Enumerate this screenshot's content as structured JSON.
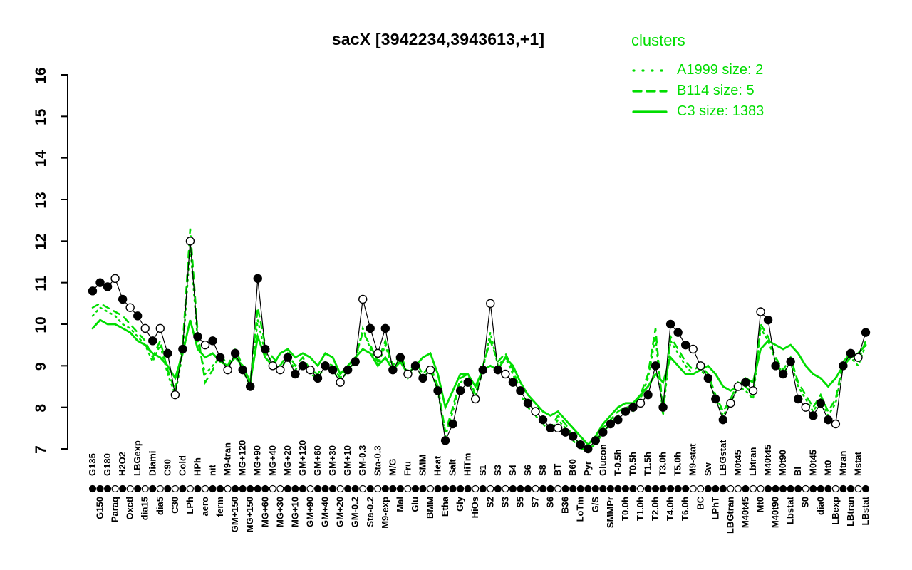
{
  "chart_data": {
    "type": "line",
    "title": "sacX [3942234,3943613,+1]",
    "legend_title": "clusters",
    "legend_position": "top-right",
    "xlabel": "",
    "ylabel": "",
    "ylim": [
      7,
      16
    ],
    "yticks": [
      7,
      8,
      9,
      10,
      11,
      12,
      13,
      14,
      15,
      16
    ],
    "grid": false,
    "series_color": "#00dd00",
    "profile_color": "#000000",
    "categories": [
      "G135",
      "G150",
      "G180",
      "Paraq",
      "H2O2",
      "Oxctl",
      "LBGexp",
      "dia15",
      "Diami",
      "dia5",
      "C90",
      "C30",
      "Cold",
      "LPh",
      "HPh",
      "aero",
      "nit",
      "ferm",
      "M9-tran",
      "GM+150",
      "MG+120",
      "MG+150",
      "MG+90",
      "MG+60",
      "MG+40",
      "MG+30",
      "MG+20",
      "MG+10",
      "GM+120",
      "GM+90",
      "GM+60",
      "GM+40",
      "GM+30",
      "GM+20",
      "GM+10",
      "GM-0.2",
      "GM-0.3",
      "Sta-0.2",
      "Sta-0.3",
      "M9-exp",
      "M/G",
      "Mal",
      "Fru",
      "Glu",
      "SMM",
      "BMM",
      "Heat",
      "Etha",
      "Salt",
      "Gly",
      "HiTm",
      "HiOs",
      "S1",
      "S2",
      "S3",
      "S3",
      "S4",
      "S5",
      "S6",
      "S7",
      "S8",
      "S6",
      "BT",
      "B36",
      "B60",
      "LoTm",
      "Pyr",
      "G/S",
      "Glucon",
      "SMMPr",
      "T-0.5h",
      "T0.0h",
      "T0.5h",
      "T1.0h",
      "T1.5h",
      "T2.0h",
      "T3.0h",
      "T4.0h",
      "T5.0h",
      "T6.0h",
      "M9-stat",
      "BC",
      "Sw",
      "LPhT",
      "LBGstat",
      "LBGtran",
      "M0t45",
      "M40t45",
      "Lbtran",
      "Mt0",
      "M40t45",
      "M40t90",
      "M0t90",
      "Lbstat",
      "BI",
      "S0",
      "M0t45",
      "dia0",
      "Mt0",
      "LBexp",
      "Mtran",
      "LBtran",
      "Mstat",
      "LBstat"
    ],
    "profile": {
      "name": "sacX expression profile",
      "values": [
        10.8,
        11.0,
        10.9,
        11.1,
        10.6,
        10.4,
        10.2,
        9.9,
        9.6,
        9.9,
        9.3,
        8.3,
        9.4,
        12.0,
        9.7,
        9.5,
        9.6,
        9.2,
        8.9,
        9.3,
        8.9,
        8.5,
        11.1,
        9.4,
        9.0,
        8.9,
        9.2,
        8.8,
        9.0,
        8.9,
        8.7,
        9.0,
        8.9,
        8.6,
        8.9,
        9.1,
        10.6,
        9.9,
        9.3,
        9.9,
        8.9,
        9.2,
        8.8,
        9.0,
        8.7,
        8.9,
        8.4,
        7.2,
        7.6,
        8.4,
        8.6,
        8.2,
        8.9,
        10.5,
        8.9,
        8.8,
        8.6,
        8.4,
        8.1,
        7.9,
        7.7,
        7.5,
        7.5,
        7.4,
        7.3,
        7.1,
        7.0,
        7.2,
        7.4,
        7.6,
        7.7,
        7.9,
        8.0,
        8.1,
        8.3,
        9.0,
        8.0,
        10.0,
        9.8,
        9.5,
        9.4,
        9.0,
        8.7,
        8.2,
        7.7,
        8.1,
        8.5,
        8.6,
        8.4,
        10.3,
        10.1,
        9.0,
        8.8,
        9.1,
        8.2,
        8.0,
        7.8,
        8.1,
        7.7,
        7.6,
        9.0,
        9.3,
        9.2,
        9.8
      ],
      "open_markers": [
        0,
        0,
        0,
        1,
        0,
        1,
        0,
        1,
        0,
        1,
        0,
        1,
        0,
        1,
        0,
        1,
        0,
        0,
        1,
        0,
        0,
        0,
        0,
        0,
        1,
        1,
        0,
        0,
        0,
        1,
        0,
        0,
        0,
        1,
        0,
        0,
        1,
        0,
        1,
        0,
        0,
        0,
        1,
        0,
        0,
        1,
        0,
        0,
        0,
        0,
        0,
        1,
        0,
        1,
        0,
        1,
        0,
        0,
        0,
        1,
        0,
        0,
        1,
        0,
        0,
        0,
        0,
        0,
        0,
        0,
        0,
        0,
        0,
        1,
        0,
        0,
        0,
        0,
        0,
        0,
        1,
        1,
        0,
        0,
        0,
        1,
        1,
        0,
        1,
        1,
        0,
        0,
        0,
        0,
        0,
        1,
        0,
        0,
        0,
        1,
        0,
        0,
        1,
        0
      ]
    },
    "series": [
      {
        "name": "A1999 size: 2",
        "style": "dotted",
        "values": [
          10.2,
          10.4,
          10.3,
          10.2,
          10.0,
          9.9,
          9.7,
          9.5,
          9.1,
          9.5,
          8.8,
          8.3,
          9.3,
          11.9,
          9.6,
          8.8,
          9.0,
          9.2,
          8.9,
          9.3,
          8.9,
          8.5,
          10.1,
          9.3,
          9.1,
          8.9,
          9.2,
          8.9,
          9.1,
          8.8,
          8.7,
          9.0,
          8.9,
          8.6,
          8.9,
          9.1,
          9.9,
          9.4,
          9.0,
          9.5,
          8.9,
          9.2,
          8.7,
          9.0,
          8.7,
          8.9,
          8.4,
          7.3,
          7.9,
          8.6,
          8.7,
          8.2,
          8.9,
          9.8,
          9.0,
          9.2,
          8.8,
          8.3,
          8.0,
          7.8,
          7.6,
          7.4,
          7.7,
          7.5,
          7.2,
          7.0,
          7.0,
          7.1,
          7.4,
          7.6,
          7.8,
          7.9,
          7.9,
          8.2,
          8.7,
          9.7,
          7.8,
          9.6,
          9.3,
          9.0,
          8.8,
          8.9,
          8.7,
          8.2,
          7.8,
          8.1,
          8.5,
          8.4,
          8.2,
          9.9,
          9.6,
          9.1,
          8.8,
          9.1,
          8.5,
          8.2,
          7.9,
          8.2,
          7.8,
          8.1,
          9.0,
          9.2,
          9.0,
          9.5
        ]
      },
      {
        "name": "B114 size: 5",
        "style": "dashed",
        "values": [
          10.4,
          10.5,
          10.4,
          10.3,
          10.2,
          10.0,
          9.8,
          9.6,
          9.2,
          9.6,
          8.9,
          8.4,
          9.5,
          12.3,
          9.8,
          8.6,
          8.9,
          9.3,
          9.0,
          9.4,
          9.0,
          8.6,
          10.4,
          9.5,
          9.2,
          9.0,
          9.3,
          9.0,
          9.2,
          8.9,
          8.8,
          9.1,
          9.0,
          8.7,
          9.0,
          9.2,
          9.8,
          9.5,
          9.1,
          9.6,
          9.0,
          9.3,
          8.8,
          9.1,
          8.8,
          9.0,
          8.5,
          7.4,
          8.0,
          8.7,
          8.8,
          8.3,
          9.0,
          9.6,
          9.1,
          9.3,
          8.9,
          8.4,
          8.1,
          7.9,
          7.7,
          7.5,
          7.8,
          7.6,
          7.3,
          7.1,
          7.0,
          7.2,
          7.5,
          7.7,
          7.9,
          8.0,
          8.0,
          8.3,
          8.8,
          9.9,
          7.9,
          9.7,
          9.4,
          9.1,
          8.9,
          9.0,
          8.8,
          8.3,
          7.9,
          8.2,
          8.6,
          8.5,
          8.3,
          10.0,
          9.7,
          9.2,
          8.9,
          9.2,
          8.6,
          8.3,
          8.0,
          8.3,
          7.9,
          8.2,
          9.1,
          9.3,
          9.1,
          9.6
        ]
      },
      {
        "name": "C3 size: 1383",
        "style": "solid",
        "values": [
          9.9,
          10.1,
          10.0,
          10.0,
          9.9,
          9.8,
          9.6,
          9.5,
          9.3,
          9.2,
          9.0,
          8.7,
          9.3,
          10.1,
          9.4,
          9.2,
          9.3,
          9.1,
          9.0,
          9.2,
          9.0,
          8.6,
          9.7,
          9.2,
          9.0,
          9.3,
          9.4,
          9.2,
          9.3,
          9.2,
          9.0,
          9.3,
          9.2,
          8.8,
          9.0,
          9.2,
          9.4,
          9.3,
          9.0,
          9.2,
          8.9,
          9.1,
          8.8,
          9.0,
          9.2,
          9.3,
          8.8,
          8.0,
          8.4,
          8.8,
          8.8,
          8.5,
          8.9,
          9.0,
          8.9,
          9.2,
          9.0,
          8.6,
          8.3,
          8.1,
          7.9,
          7.8,
          7.9,
          7.7,
          7.5,
          7.3,
          7.1,
          7.3,
          7.6,
          7.8,
          8.0,
          8.1,
          8.1,
          8.3,
          8.5,
          8.8,
          8.6,
          9.2,
          9.0,
          8.8,
          8.8,
          8.9,
          9.0,
          8.8,
          8.5,
          8.4,
          8.5,
          8.7,
          8.6,
          9.4,
          9.6,
          9.5,
          9.4,
          9.5,
          9.3,
          9.0,
          8.8,
          8.7,
          8.5,
          8.7,
          9.0,
          9.2,
          9.3,
          9.5
        ]
      }
    ]
  }
}
